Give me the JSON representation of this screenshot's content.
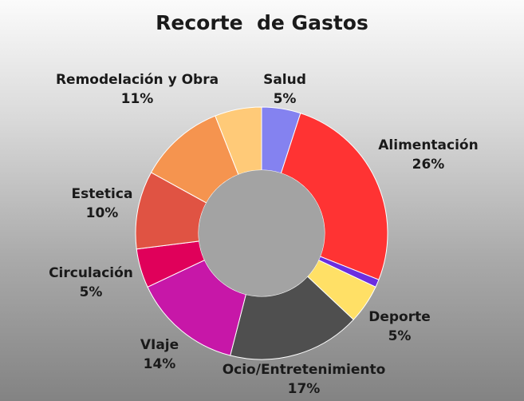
{
  "chart_data": {
    "type": "pie",
    "variant": "donut",
    "title": "Recorte  de Gastos",
    "start_angle_deg": 0,
    "slices": [
      {
        "label": "Salud",
        "value": 5,
        "value_label": "5%",
        "color": "#8482f0"
      },
      {
        "label": "Alimentación",
        "value": 26,
        "value_label": "26%",
        "color": "#ff3333"
      },
      {
        "label": "",
        "value": 1,
        "value_label": "",
        "color": "#6b2ee0"
      },
      {
        "label": "Deporte",
        "value": 5,
        "value_label": "5%",
        "color": "#ffe066"
      },
      {
        "label": "Ocio/Entretenimiento",
        "value": 17,
        "value_label": "17%",
        "color": "#4f4f4f"
      },
      {
        "label": "VIaje",
        "value": 14,
        "value_label": "14%",
        "color": "#c717a8"
      },
      {
        "label": "Circulación",
        "value": 5,
        "value_label": "5%",
        "color": "#e0005a"
      },
      {
        "label": "Estetica",
        "value": 10,
        "value_label": "10%",
        "color": "#e05343"
      },
      {
        "label": "Remodelación y Obra",
        "value": 11,
        "value_label": "11%",
        "color": "#f5944f"
      },
      {
        "label": "",
        "value": 6,
        "value_label": "",
        "color": "#ffca78"
      }
    ],
    "legend": "none"
  }
}
